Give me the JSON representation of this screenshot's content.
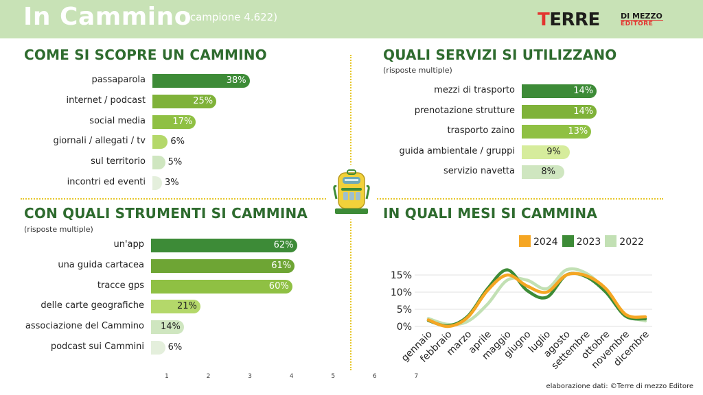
{
  "header": {
    "title": "In Cammino",
    "sample": "(campione 4.622)",
    "logo": {
      "main_t": "T",
      "main_rest": "ERRE",
      "line1": "DI MEZZO",
      "line2": "EDITORE"
    }
  },
  "footer": {
    "source": "elaborazione dati: ©Terre di mezzo Editore",
    "stray_ticks": "1 2 3 4 5 6 7"
  },
  "colors": {
    "dark_green": "#3d8b37",
    "mid_green": "#7fb239",
    "light_green": "#b4d86a",
    "pale_green": "#cfe6c0",
    "orange": "#f5a623",
    "title_green": "#2e6b2e"
  },
  "sections": {
    "scoperta": {
      "title": "COME SI SCOPRE UN CAMMINO",
      "subtitle": ""
    },
    "servizi": {
      "title": "QUALI SERVIZI SI UTILIZZANO",
      "subtitle": "(risposte multiple)"
    },
    "strumenti": {
      "title": "CON QUALI STRUMENTI SI CAMMINA",
      "subtitle": "(risposte multiple)"
    },
    "mesi": {
      "title": "IN QUALI MESI SI CAMMINA"
    }
  },
  "chart_data": [
    {
      "type": "bar",
      "title": "COME SI SCOPRE UN CAMMINO",
      "categories": [
        "passaparola",
        "internet / podcast",
        "social media",
        "giornali / allegati / tv",
        "sul territorio",
        "incontri ed eventi"
      ],
      "values": [
        38,
        25,
        17,
        6,
        5,
        3
      ],
      "labels": [
        "38%",
        "25%",
        "17%",
        "6%",
        "5%",
        "3%"
      ],
      "colors": [
        "#3d8b37",
        "#7fb239",
        "#8fc043",
        "#b4d86a",
        "#cfe6c0",
        "#e4efdc"
      ]
    },
    {
      "type": "bar",
      "title": "QUALI SERVIZI SI UTILIZZANO",
      "categories": [
        "mezzi di trasporto",
        "prenotazione strutture",
        "trasporto zaino",
        "guida ambientale / gruppi",
        "servizio navetta"
      ],
      "values": [
        14,
        14,
        13,
        9,
        8
      ],
      "labels": [
        "14%",
        "14%",
        "13%",
        "9%",
        "8%"
      ],
      "colors": [
        "#3d8b37",
        "#7fb239",
        "#8fc043",
        "#d6ec9c",
        "#cfe6c0"
      ]
    },
    {
      "type": "bar",
      "title": "CON QUALI STRUMENTI SI CAMMINA",
      "categories": [
        "un'app",
        "una guida cartacea",
        "tracce gps",
        "delle carte geografiche",
        "associazione del Cammino",
        "podcast sui Cammini"
      ],
      "values": [
        62,
        61,
        60,
        21,
        14,
        6
      ],
      "labels": [
        "62%",
        "61%",
        "60%",
        "21%",
        "14%",
        "6%"
      ],
      "colors": [
        "#3d8b37",
        "#6ea534",
        "#8fc043",
        "#b4d86a",
        "#cfe6c0",
        "#e4efdc"
      ]
    },
    {
      "type": "line",
      "title": "IN QUALI MESI SI CAMMINA",
      "x": [
        "gennaio",
        "febbraio",
        "marzo",
        "aprile",
        "maggio",
        "giugno",
        "luglio",
        "agosto",
        "settembre",
        "ottobre",
        "novembre",
        "dicembre"
      ],
      "yticks": [
        "0%",
        "5%",
        "10%",
        "15%"
      ],
      "ylim": [
        0,
        18
      ],
      "grid": true,
      "legend_position": "top",
      "series": [
        {
          "name": "2022",
          "color": "#c2e0b4",
          "values": [
            2.3,
            0.6,
            1.5,
            6.5,
            13.5,
            13.5,
            11,
            16.5,
            15.5,
            10.5,
            3.5,
            1.6
          ]
        },
        {
          "name": "2023",
          "color": "#3d8b37",
          "values": [
            1.7,
            0.2,
            3,
            11,
            16.5,
            10.5,
            8.5,
            15,
            14.5,
            10,
            3,
            2.2
          ]
        },
        {
          "name": "2024",
          "color": "#f5a623",
          "values": [
            1.9,
            0,
            2.7,
            10.5,
            15,
            11.8,
            10,
            15,
            14.8,
            11,
            3.5,
            2.8
          ]
        }
      ],
      "legend_order": [
        "2024",
        "2023",
        "2022"
      ]
    }
  ]
}
